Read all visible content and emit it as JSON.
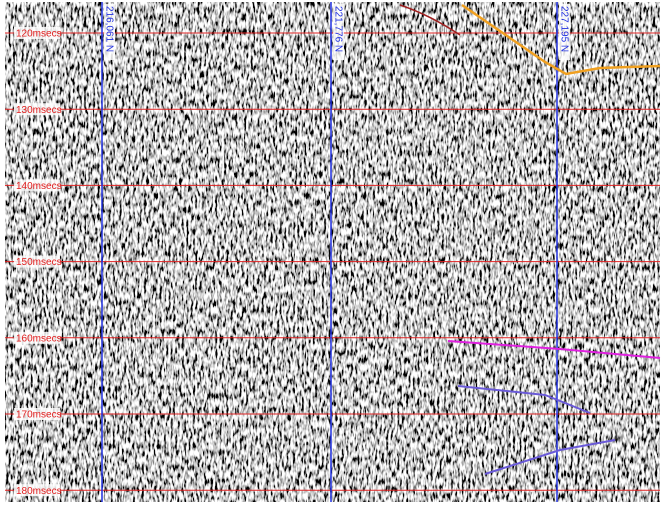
{
  "time_labels": [
    "120msecs",
    "130msecs",
    "140msecs",
    "150msecs",
    "160msecs",
    "170msecs",
    "180msecs"
  ],
  "northing_labels": [
    "216,061 N",
    "221,776 N",
    "227,195 N"
  ]
}
